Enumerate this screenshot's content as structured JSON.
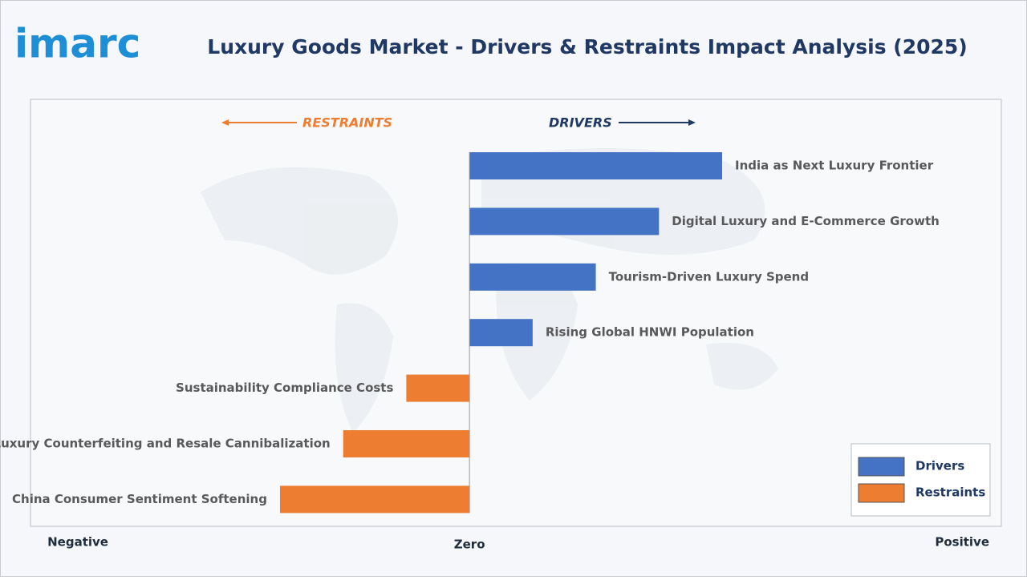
{
  "logo": "imarc",
  "chart_data": {
    "type": "diverging-bar",
    "title": "Luxury Goods Market - Drivers & Restraints Impact Analysis (2025)",
    "annotations": [
      "RESTRAINTS",
      "DRIVERS"
    ],
    "categories": [
      "India as Next Luxury Frontier",
      "Digital Luxury and E-Commerce Growth",
      "Tourism-Driven Luxury Spend",
      "Rising Global HNWI Population",
      "Sustainability Compliance Costs",
      "Luxury Counterfeiting and Resale Cannibalization",
      "China Consumer Sentiment Softening"
    ],
    "series": [
      {
        "name": "Drivers",
        "color": "#4472c4",
        "values": [
          4,
          3,
          2,
          1,
          null,
          null,
          null
        ]
      },
      {
        "name": "Restraints",
        "color": "#ed7d31",
        "values": [
          null,
          null,
          null,
          null,
          -1,
          -2,
          -3
        ]
      }
    ],
    "xlim": [
      -6.95,
      8.42
    ],
    "xticks": [
      {
        "value": -6.2,
        "label": "Negative"
      },
      {
        "value": 0,
        "label": "Zero"
      },
      {
        "value": 7.8,
        "label": "Positive"
      }
    ],
    "legend": "bottom-right"
  }
}
